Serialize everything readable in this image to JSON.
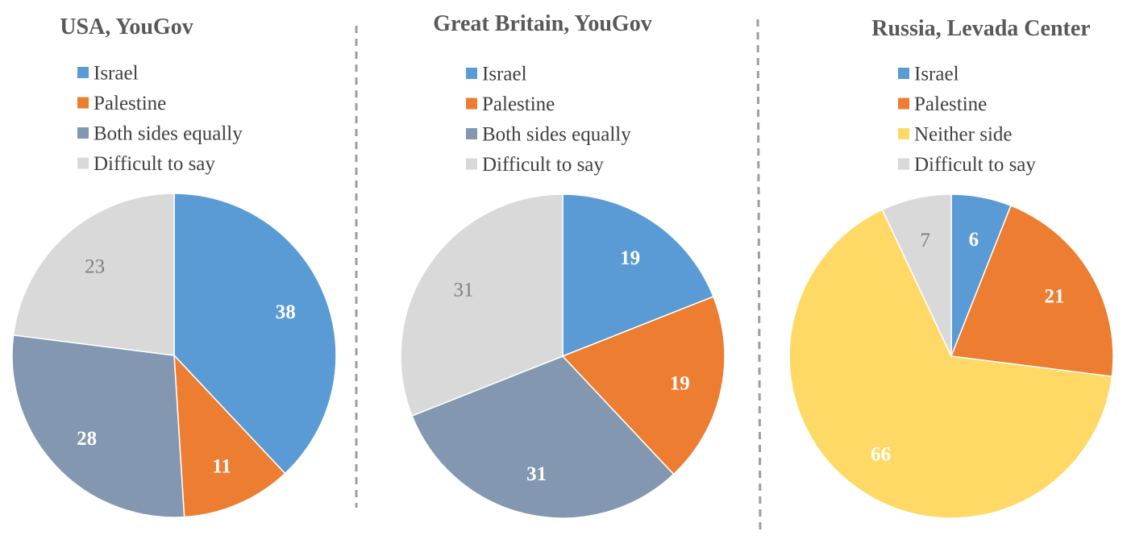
{
  "chart_data": [
    {
      "type": "pie",
      "title": "USA, YouGov",
      "legend_placement": "top",
      "categories": [
        "Israel",
        "Palestine",
        "Both sides equally",
        "Difficult to say"
      ],
      "values": [
        38,
        11,
        28,
        23
      ],
      "colors": [
        "#5B9BD5",
        "#ED7D31",
        "#8497B0",
        "#D9D9D9"
      ],
      "data_labels": [
        "38",
        "11",
        "28",
        "23"
      ],
      "label_colors": [
        "#ffffff",
        "#ffffff",
        "#ffffff",
        "#7f7f7f"
      ],
      "label_bold": [
        true,
        true,
        true,
        false
      ]
    },
    {
      "type": "pie",
      "title": "Great Britain, YouGov",
      "legend_placement": "top",
      "categories": [
        "Israel",
        "Palestine",
        "Both sides equally",
        "Difficult to say"
      ],
      "values": [
        19,
        19,
        31,
        31
      ],
      "colors": [
        "#5B9BD5",
        "#ED7D31",
        "#8497B0",
        "#D9D9D9"
      ],
      "data_labels": [
        "19",
        "19",
        "31",
        "31"
      ],
      "label_colors": [
        "#ffffff",
        "#ffffff",
        "#ffffff",
        "#7f7f7f"
      ],
      "label_bold": [
        true,
        true,
        true,
        false
      ]
    },
    {
      "type": "pie",
      "title": "Russia, Levada Center",
      "legend_placement": "top",
      "categories": [
        "Israel",
        "Palestine",
        "Neither side",
        "Difficult to say"
      ],
      "values": [
        6,
        21,
        66,
        7
      ],
      "colors": [
        "#5B9BD5",
        "#ED7D31",
        "#FFD966",
        "#D9D9D9"
      ],
      "data_labels": [
        "6",
        "21",
        "66",
        "7"
      ],
      "label_colors": [
        "#ffffff",
        "#ffffff",
        "#ffffff",
        "#7f7f7f"
      ],
      "label_bold": [
        true,
        true,
        true,
        false
      ]
    }
  ]
}
